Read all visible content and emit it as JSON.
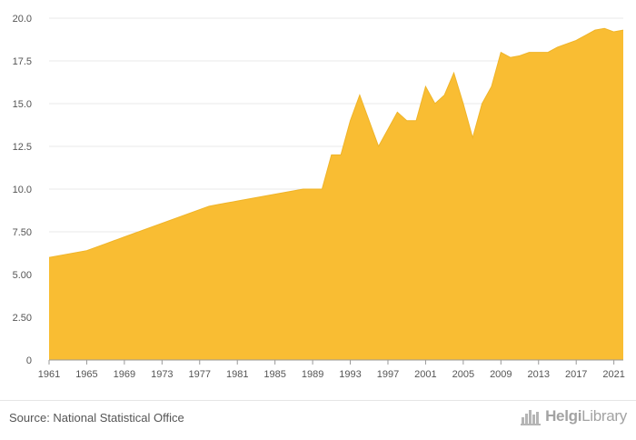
{
  "chart_data": {
    "type": "area",
    "title": "",
    "xlabel": "",
    "ylabel": "",
    "x": [
      1961,
      1962,
      1963,
      1964,
      1965,
      1966,
      1967,
      1968,
      1969,
      1970,
      1971,
      1972,
      1973,
      1974,
      1975,
      1976,
      1977,
      1978,
      1979,
      1980,
      1981,
      1982,
      1983,
      1984,
      1985,
      1986,
      1987,
      1988,
      1989,
      1990,
      1991,
      1992,
      1993,
      1994,
      1995,
      1996,
      1997,
      1998,
      1999,
      2000,
      2001,
      2002,
      2003,
      2004,
      2005,
      2006,
      2007,
      2008,
      2009,
      2010,
      2011,
      2012,
      2013,
      2014,
      2015,
      2016,
      2017,
      2018,
      2019,
      2020,
      2021,
      2022
    ],
    "values": [
      6.0,
      6.1,
      6.2,
      6.3,
      6.4,
      6.6,
      6.8,
      7.0,
      7.2,
      7.4,
      7.6,
      7.8,
      8.0,
      8.2,
      8.4,
      8.6,
      8.8,
      9.0,
      9.1,
      9.2,
      9.3,
      9.4,
      9.5,
      9.6,
      9.7,
      9.8,
      9.9,
      10.0,
      10.0,
      10.0,
      12.0,
      12.0,
      14.0,
      15.5,
      14.0,
      12.5,
      13.5,
      14.5,
      14.0,
      14.0,
      16.0,
      15.0,
      15.5,
      16.8,
      15.0,
      13.0,
      15.0,
      16.0,
      18.0,
      17.7,
      17.8,
      18.0,
      18.0,
      18.0,
      18.3,
      18.5,
      18.7,
      19.0,
      19.3,
      19.4,
      19.2,
      19.3
    ],
    "xlim": [
      1961,
      2022
    ],
    "ylim": [
      0,
      20
    ],
    "x_ticks": [
      "1961",
      "1965",
      "1969",
      "1973",
      "1977",
      "1981",
      "1985",
      "1989",
      "1993",
      "1997",
      "2001",
      "2005",
      "2009",
      "2013",
      "2017",
      "2021"
    ],
    "y_ticks": [
      "0",
      "2.50",
      "5.00",
      "7.50",
      "10.0",
      "12.5",
      "15.0",
      "17.5",
      "20.0"
    ],
    "grid": "horizontal",
    "colors": {
      "fill": "#f9bd33",
      "stroke": "#efb428",
      "grid": "#e8e8e8",
      "axis": "#999999"
    }
  },
  "footer": {
    "source": "Source: National Statistical Office",
    "brand_prefix": "Helgi",
    "brand_suffix": "Library",
    "brand_icon": "building-chart-icon"
  }
}
